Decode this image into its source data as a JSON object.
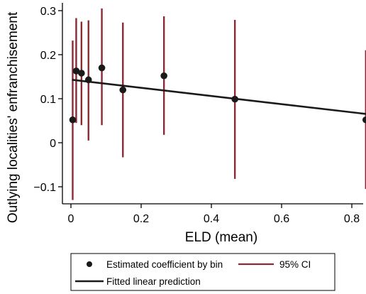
{
  "chart_data": {
    "type": "scatter",
    "xlabel": "ELD (mean)",
    "ylabel": "Outlying localities' enfranchisement",
    "xlim": [
      -0.005,
      0.845
    ],
    "ylim": [
      -0.14,
      0.305
    ],
    "x_ticks": [
      0,
      0.2,
      0.4,
      0.6,
      0.8
    ],
    "x_tick_labels": [
      "0",
      "0.2",
      "0.4",
      "0.6",
      "0.8"
    ],
    "y_ticks": [
      -0.1,
      0,
      0.1,
      0.2,
      0.3
    ],
    "y_tick_labels": [
      "−0.1",
      "0",
      "0.1",
      "0.2",
      "0.3"
    ],
    "grid": false,
    "legend_position": "bottom",
    "series": [
      {
        "name": "Estimated coefficient by bin",
        "kind": "points",
        "color": "#1a1a1a",
        "x": [
          0.005,
          0.015,
          0.03,
          0.05,
          0.088,
          0.148,
          0.265,
          0.467,
          0.84
        ],
        "y": [
          0.052,
          0.163,
          0.158,
          0.143,
          0.17,
          0.12,
          0.152,
          0.099,
          0.052
        ]
      },
      {
        "name": "95% CI",
        "kind": "errorbars",
        "color": "#8b2a36",
        "x": [
          0.005,
          0.015,
          0.03,
          0.05,
          0.088,
          0.148,
          0.265,
          0.467,
          0.84
        ],
        "low": [
          -0.13,
          0.045,
          0.04,
          0.005,
          0.04,
          -0.033,
          0.018,
          -0.082,
          -0.105
        ],
        "high": [
          0.232,
          0.283,
          0.275,
          0.278,
          0.305,
          0.273,
          0.287,
          0.279,
          0.21
        ]
      },
      {
        "name": "Fitted linear prediction",
        "kind": "line",
        "color": "#1a1a1a",
        "x": [
          0.003,
          0.845
        ],
        "y": [
          0.143,
          0.065
        ]
      }
    ]
  },
  "legend": {
    "entries": [
      {
        "label": "Estimated coefficient by bin",
        "symbol": "point",
        "color": "#1a1a1a"
      },
      {
        "label": "95% CI",
        "symbol": "line",
        "color": "#8b2a36"
      },
      {
        "label": "Fitted linear prediction",
        "symbol": "line",
        "color": "#1a1a1a"
      }
    ]
  }
}
